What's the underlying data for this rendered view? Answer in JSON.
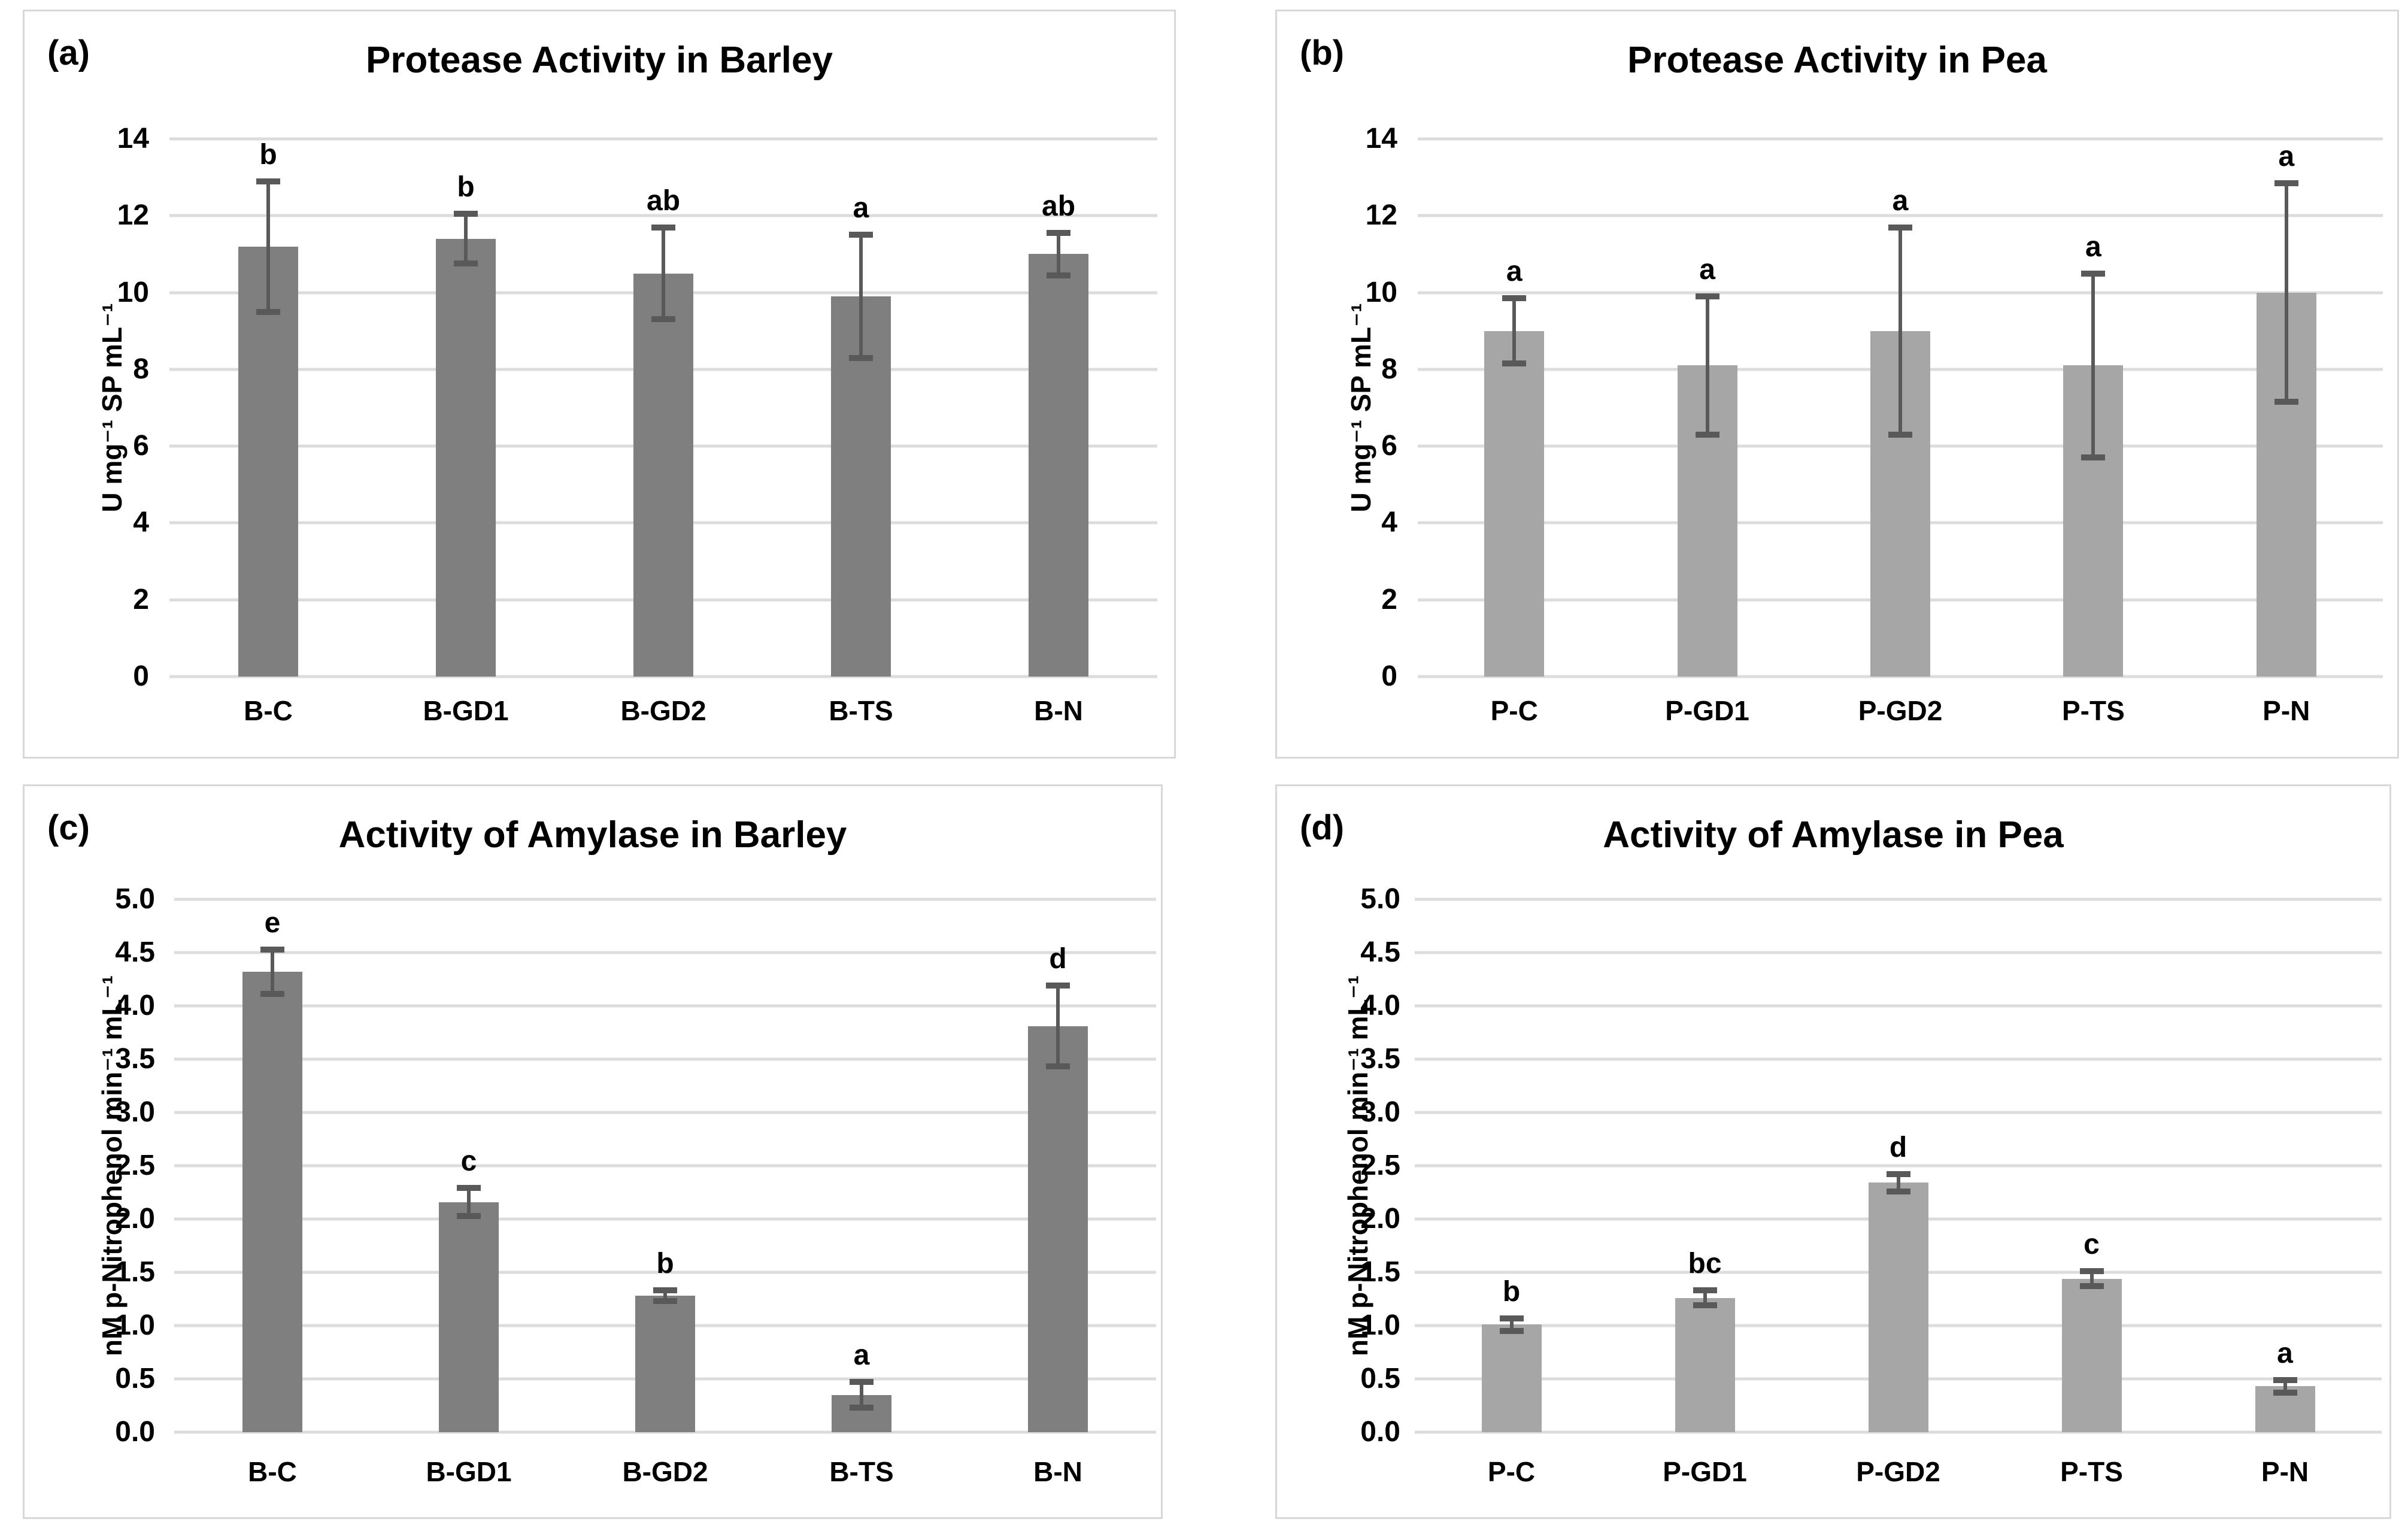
{
  "chart_data": [
    {
      "type": "bar",
      "panel_label": "(a)",
      "title": "Protease Activity in Barley",
      "xlabel": "",
      "ylabel": "U mg⁻¹ SP mL⁻¹",
      "ylim": [
        0,
        14
      ],
      "ytick_values": [
        0,
        2,
        4,
        6,
        8,
        10,
        12,
        14
      ],
      "ytick_labels": [
        "0",
        "2",
        "4",
        "6",
        "8",
        "10",
        "12",
        "14"
      ],
      "categories": [
        "B-C",
        "B-GD1",
        "B-GD2",
        "B-TS",
        "B-N"
      ],
      "values": [
        11.2,
        11.4,
        10.5,
        9.9,
        11.0
      ],
      "errors": [
        1.7,
        0.65,
        1.2,
        1.6,
        0.55
      ],
      "sig_letters": [
        "b",
        "b",
        "ab",
        "a",
        "ab"
      ],
      "bar_color": "#7f7f7f",
      "error_color": "#595959",
      "grid": true,
      "legend": null
    },
    {
      "type": "bar",
      "panel_label": "(b)",
      "title": "Protease Activity in Pea",
      "xlabel": "",
      "ylabel": "U mg⁻¹ SP mL⁻¹",
      "ylim": [
        0,
        14
      ],
      "ytick_values": [
        0,
        2,
        4,
        6,
        8,
        10,
        12,
        14
      ],
      "ytick_labels": [
        "0",
        "2",
        "4",
        "6",
        "8",
        "10",
        "12",
        "14"
      ],
      "categories": [
        "P-C",
        "P-GD1",
        "P-GD2",
        "P-TS",
        "P-N"
      ],
      "values": [
        9.0,
        8.1,
        9.0,
        8.1,
        10.0
      ],
      "errors": [
        0.85,
        1.8,
        2.7,
        2.4,
        2.85
      ],
      "sig_letters": [
        "a",
        "a",
        "a",
        "a",
        "a"
      ],
      "bar_color": "#a6a6a6",
      "error_color": "#595959",
      "grid": true,
      "legend": null
    },
    {
      "type": "bar",
      "panel_label": "(c)",
      "title": "Activity of Amylase in Barley",
      "xlabel": "",
      "ylabel": "nM p-Nitrophenol min⁻¹ mL⁻¹",
      "ylim": [
        0,
        5
      ],
      "ytick_values": [
        0,
        0.5,
        1,
        1.5,
        2,
        2.5,
        3,
        3.5,
        4,
        4.5,
        5
      ],
      "ytick_labels": [
        "0.0",
        "0.5",
        "1.0",
        "1.5",
        "2.0",
        "2.5",
        "3.0",
        "3.5",
        "4.0",
        "4.5",
        "5.0"
      ],
      "categories": [
        "B-C",
        "B-GD1",
        "B-GD2",
        "B-TS",
        "B-N"
      ],
      "values": [
        4.32,
        2.16,
        1.28,
        0.35,
        3.81
      ],
      "errors": [
        0.21,
        0.13,
        0.05,
        0.12,
        0.38
      ],
      "sig_letters": [
        "e",
        "c",
        "b",
        "a",
        "d"
      ],
      "bar_color": "#7f7f7f",
      "error_color": "#595959",
      "grid": true,
      "legend": null
    },
    {
      "type": "bar",
      "panel_label": "(d)",
      "title": "Activity of Amylase in Pea",
      "xlabel": "",
      "ylabel": "nM p-Nitrophenol min⁻¹ mL⁻¹",
      "ylim": [
        0,
        5
      ],
      "ytick_values": [
        0,
        0.5,
        1,
        1.5,
        2,
        2.5,
        3,
        3.5,
        4,
        4.5,
        5
      ],
      "ytick_labels": [
        "0.0",
        "0.5",
        "1.0",
        "1.5",
        "2.0",
        "2.5",
        "3.0",
        "3.5",
        "4.0",
        "4.5",
        "5.0"
      ],
      "categories": [
        "P-C",
        "P-GD1",
        "P-GD2",
        "P-TS",
        "P-N"
      ],
      "values": [
        1.01,
        1.26,
        2.34,
        1.44,
        0.43
      ],
      "errors": [
        0.06,
        0.07,
        0.08,
        0.07,
        0.06
      ],
      "sig_letters": [
        "b",
        "bc",
        "d",
        "c",
        "a"
      ],
      "bar_color": "#a6a6a6",
      "error_color": "#595959",
      "grid": true,
      "legend": null
    }
  ]
}
